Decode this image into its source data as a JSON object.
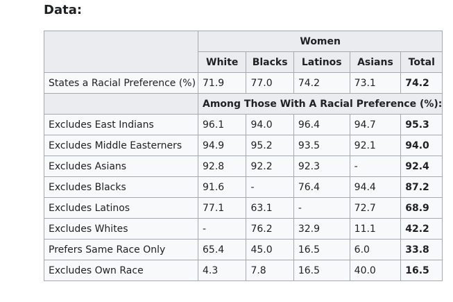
{
  "heading": "Data:",
  "table": {
    "group_header": "Women",
    "columns": [
      "White",
      "Blacks",
      "Latinos",
      "Asians",
      "Total"
    ],
    "preference_row": {
      "label": "States a Racial Preference (%)",
      "values": [
        "71.9",
        "77.0",
        "74.2",
        "73.1",
        "74.2"
      ]
    },
    "subheader": "Among Those With A Racial Preference (%):",
    "rows": [
      {
        "label": "Excludes East Indians",
        "values": [
          "96.1",
          "94.0",
          "96.4",
          "94.7",
          "95.3"
        ]
      },
      {
        "label": "Excludes Middle Easterners",
        "values": [
          "94.9",
          "95.2",
          "93.5",
          "92.1",
          "94.0"
        ]
      },
      {
        "label": "Excludes Asians",
        "values": [
          "92.8",
          "92.2",
          "92.3",
          "-",
          "92.4"
        ]
      },
      {
        "label": "Excludes Blacks",
        "values": [
          "91.6",
          "-",
          "76.4",
          "94.4",
          "87.2"
        ]
      },
      {
        "label": "Excludes Latinos",
        "values": [
          "77.1",
          "63.1",
          "-",
          "72.7",
          "68.9"
        ]
      },
      {
        "label": "Excludes Whites",
        "values": [
          "-",
          "76.2",
          "32.9",
          "11.1",
          "42.2"
        ]
      },
      {
        "label": "Prefers Same Race Only",
        "values": [
          "65.4",
          "45.0",
          "16.5",
          "6.0",
          "33.8"
        ]
      },
      {
        "label": "Excludes Own Race",
        "values": [
          "4.3",
          "7.8",
          "16.5",
          "40.0",
          "16.5"
        ]
      }
    ]
  }
}
